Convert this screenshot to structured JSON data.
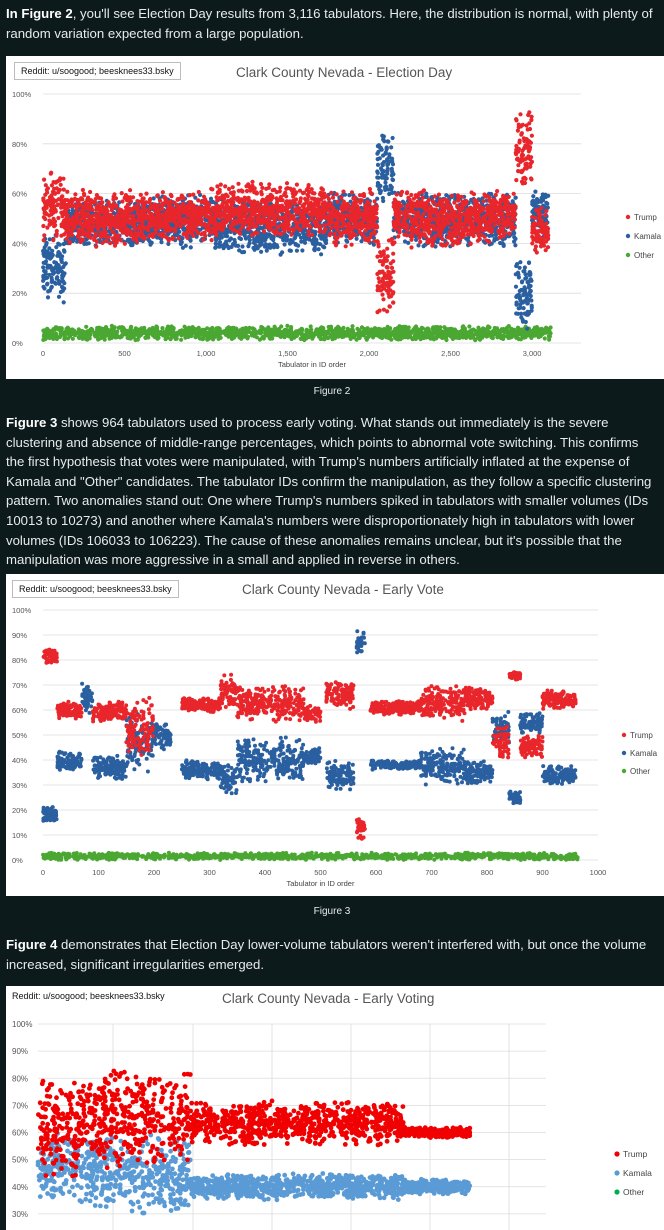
{
  "para1": {
    "bold": "In Figure 2",
    "text": ", you'll see Election Day results from 3,116 tabulators. Here, the distribution is normal, with plenty of random variation expected from a large population."
  },
  "fig2": {
    "caption": "Figure 2",
    "credit": "Reddit: u/soogood; beesknees33.bsky",
    "chart_data": {
      "type": "scatter",
      "title": "Clark County Nevada - Election Day",
      "xlabel": "Tabulator in ID order",
      "ylabel": "",
      "xlim": [
        0,
        3300
      ],
      "ylim": [
        0,
        100
      ],
      "x_ticks": [
        "0",
        "500",
        "1,000",
        "1,500",
        "2,000",
        "2,500",
        "3,000"
      ],
      "y_ticks": [
        "0%",
        "20%",
        "40%",
        "60%",
        "80%",
        "100%"
      ],
      "legend": [
        "Trump",
        "Kamala",
        "Other"
      ],
      "series": [
        {
          "name": "Trump",
          "color": "#e8262b",
          "clusters": [
            [
              0,
              140,
              40,
              70
            ],
            [
              140,
              600,
              38,
              62
            ],
            [
              600,
              1050,
              40,
              62
            ],
            [
              1050,
              1750,
              42,
              65
            ],
            [
              1750,
              2050,
              38,
              62
            ],
            [
              2050,
              2150,
              10,
              45
            ],
            [
              2150,
              2750,
              38,
              62
            ],
            [
              2750,
              2900,
              42,
              62
            ],
            [
              2900,
              3000,
              60,
              95
            ],
            [
              3000,
              3100,
              35,
              55
            ]
          ]
        },
        {
          "name": "Kamala",
          "color": "#2a5fa0",
          "clusters": [
            [
              0,
              140,
              15,
              45
            ],
            [
              140,
              600,
              38,
              58
            ],
            [
              600,
              1050,
              38,
              60
            ],
            [
              1050,
              1750,
              35,
              58
            ],
            [
              1750,
              2050,
              38,
              62
            ],
            [
              2050,
              2150,
              55,
              85
            ],
            [
              2150,
              2750,
              38,
              62
            ],
            [
              2750,
              2900,
              38,
              60
            ],
            [
              2900,
              3000,
              5,
              35
            ],
            [
              3000,
              3100,
              42,
              62
            ]
          ]
        },
        {
          "name": "Other",
          "color": "#4aa832",
          "clusters": [
            [
              0,
              3116,
              1,
              7
            ]
          ]
        }
      ]
    }
  },
  "para2": {
    "bold": "Figure 3",
    "text": " shows 964 tabulators used to process early voting. What stands out immediately is the severe clustering and absence of middle-range percentages, which points to abnormal vote switching. This confirms the first hypothesis that votes were manipulated, with Trump's numbers artificially inflated at the expense of Kamala and \"Other\" candidates. The tabulator IDs confirm the manipulation, as they follow a specific clustering pattern. Two anomalies stand out: One where Trump's numbers spiked in tabulators with smaller volumes (IDs 10013 to 10273) and another where Kamala's numbers were disproportionately high in tabulators with lower volumes (IDs 106033 to 106223). The cause of these anomalies remains unclear, but it's possible that the manipulation was more aggressive in a small and applied in reverse in others."
  },
  "fig3": {
    "caption": "Figure 3",
    "credit": "Reddit: u/soogood; beesknees33.bsky",
    "chart_data": {
      "type": "scatter",
      "title": "Clark County Nevada - Early Vote",
      "xlabel": "Tabulator in ID order",
      "ylabel": "",
      "xlim": [
        0,
        1000
      ],
      "ylim": [
        0,
        100
      ],
      "x_ticks": [
        "0",
        "100",
        "200",
        "300",
        "400",
        "500",
        "600",
        "700",
        "800",
        "900",
        "1000"
      ],
      "y_ticks": [
        "0%",
        "10%",
        "20%",
        "30%",
        "40%",
        "50%",
        "60%",
        "70%",
        "80%",
        "90%",
        "100%"
      ],
      "legend": [
        "Trump",
        "Kamala",
        "Other"
      ],
      "series": [
        {
          "name": "Trump",
          "color": "#e8262b",
          "clusters": [
            [
              0,
              25,
              78,
              85
            ],
            [
              25,
              70,
              56,
              64
            ],
            [
              90,
              150,
              55,
              64
            ],
            [
              150,
              200,
              40,
              65
            ],
            [
              250,
              320,
              59,
              65
            ],
            [
              320,
              350,
              60,
              75
            ],
            [
              350,
              470,
              55,
              70
            ],
            [
              470,
              500,
              55,
              62
            ],
            [
              510,
              560,
              60,
              72
            ],
            [
              565,
              580,
              8,
              18
            ],
            [
              590,
              680,
              58,
              64
            ],
            [
              680,
              760,
              55,
              70
            ],
            [
              760,
              810,
              60,
              70
            ],
            [
              810,
              840,
              40,
              55
            ],
            [
              840,
              860,
              72,
              76
            ],
            [
              860,
              900,
              40,
              50
            ],
            [
              900,
              960,
              60,
              68
            ]
          ]
        },
        {
          "name": "Kamala",
          "color": "#2a5fa0",
          "clusters": [
            [
              0,
              25,
              15,
              22
            ],
            [
              25,
              70,
              35,
              44
            ],
            [
              70,
              90,
              58,
              72
            ],
            [
              90,
              150,
              32,
              42
            ],
            [
              150,
              200,
              35,
              60
            ],
            [
              200,
              230,
              44,
              55
            ],
            [
              250,
              320,
              32,
              40
            ],
            [
              320,
              350,
              25,
              40
            ],
            [
              350,
              470,
              30,
              50
            ],
            [
              470,
              500,
              38,
              45
            ],
            [
              510,
              560,
              28,
              40
            ],
            [
              565,
              580,
              82,
              92
            ],
            [
              590,
              680,
              36,
              40
            ],
            [
              680,
              760,
              30,
              45
            ],
            [
              760,
              810,
              30,
              40
            ],
            [
              810,
              840,
              45,
              60
            ],
            [
              840,
              860,
              22,
              28
            ],
            [
              860,
              900,
              50,
              60
            ],
            [
              900,
              960,
              30,
              38
            ]
          ]
        },
        {
          "name": "Other",
          "color": "#4aa832",
          "clusters": [
            [
              0,
              964,
              0,
              3
            ]
          ]
        }
      ]
    }
  },
  "para3": {
    "bold": "Figure 4",
    "text": " demonstrates that Election Day lower-volume tabulators weren't interfered with, but once the volume increased, significant irregularities emerged."
  },
  "fig4": {
    "credit": "Reddit: u/soogood; beesknees33.bsky",
    "chart_data": {
      "type": "scatter",
      "title": "Clark County Nevada - Early Voting",
      "xlabel": "",
      "ylabel": "",
      "ylim": [
        20,
        100
      ],
      "y_ticks": [
        "30%",
        "40%",
        "50%",
        "60%",
        "70%",
        "80%",
        "90%",
        "100%"
      ],
      "legend": [
        "Trump",
        "Kamala",
        "Other"
      ],
      "series": [
        {
          "name": "Trump",
          "color": "#f00000",
          "clusters": [
            [
              0,
              8,
              40,
              82
            ],
            [
              8,
              30,
              45,
              85
            ],
            [
              30,
              55,
              55,
              72
            ],
            [
              55,
              72,
              55,
              72
            ],
            [
              72,
              85,
              58,
              62
            ]
          ]
        },
        {
          "name": "Kamala",
          "color": "#5b9bd5",
          "clusters": [
            [
              0,
              8,
              35,
              60
            ],
            [
              8,
              30,
              30,
              60
            ],
            [
              30,
              55,
              35,
              45
            ],
            [
              55,
              72,
              35,
              45
            ],
            [
              72,
              85,
              37,
              43
            ]
          ]
        },
        {
          "name": "Other",
          "color": "#00b050",
          "clusters": []
        }
      ]
    }
  }
}
